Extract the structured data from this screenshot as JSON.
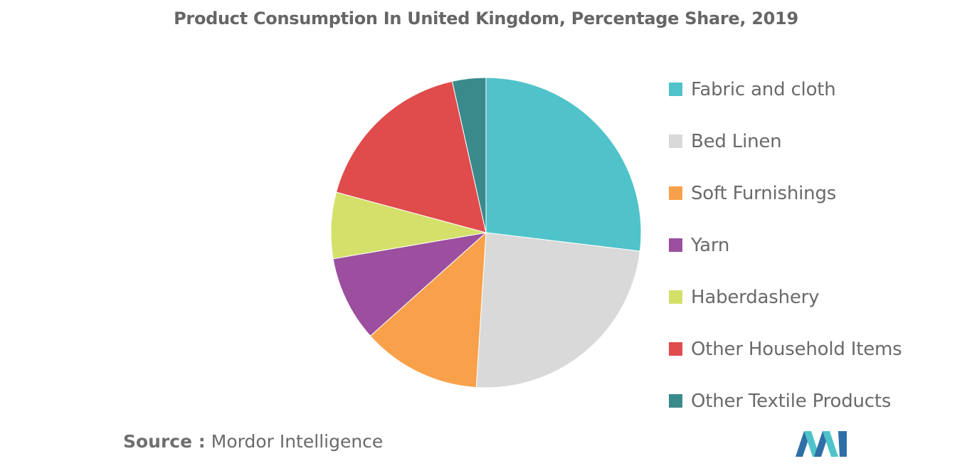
{
  "chart_data": {
    "type": "pie",
    "title": "Product Consumption In United Kingdom, Percentage Share, 2019",
    "categories": [
      "Fabric and cloth",
      "Bed Linen",
      "Soft Furnishings",
      "Yarn",
      "Haberdashery",
      "Other Household Items",
      "Other Textile Products"
    ],
    "values": [
      26.9,
      24.1,
      12.4,
      8.9,
      6.9,
      17.3,
      3.5
    ],
    "colors": [
      "#4fc3c9",
      "#d9d9d9",
      "#f9a14a",
      "#9b4f9e",
      "#d4e06a",
      "#e04b4b",
      "#3a8a8c"
    ],
    "legend_position": "right"
  },
  "footer": {
    "source_prefix": "Source :",
    "source_name": "Mordor Intelligence"
  },
  "logo": {
    "icon": "mordor-intelligence-logo-icon",
    "colors": [
      "#2f6fa8",
      "#4fc3c9"
    ]
  }
}
